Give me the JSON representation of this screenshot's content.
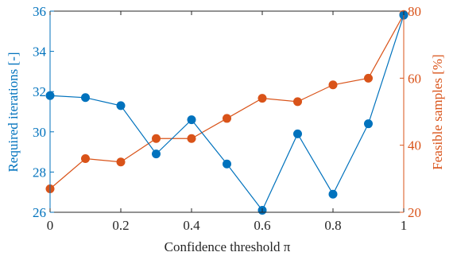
{
  "chart_data": {
    "type": "line",
    "title": "",
    "xlabel": "Confidence threshold π",
    "x": [
      0,
      0.1,
      0.2,
      0.3,
      0.4,
      0.5,
      0.6,
      0.7,
      0.8,
      0.9,
      1
    ],
    "xlim": [
      0,
      1
    ],
    "xticks": [
      0,
      0.2,
      0.4,
      0.6,
      0.8,
      1
    ],
    "xtick_labels": [
      "0",
      "0.2",
      "0.4",
      "0.6",
      "0.8",
      "1"
    ],
    "grid": false,
    "legend": "none",
    "axes": {
      "left": {
        "label": "Required iterations [-]",
        "ylim": [
          26,
          36
        ],
        "ticks": [
          26,
          28,
          30,
          32,
          34,
          36
        ],
        "tick_labels": [
          "26",
          "28",
          "30",
          "32",
          "34",
          "36"
        ],
        "color": "#0072BD"
      },
      "right": {
        "label": "Feasible samples [%]",
        "ylim": [
          20,
          80
        ],
        "ticks": [
          20,
          40,
          60,
          80
        ],
        "tick_labels": [
          "20",
          "40",
          "60",
          "80"
        ],
        "color": "#D95319"
      }
    },
    "series": [
      {
        "axis": "left",
        "color": "#0072BD",
        "values": [
          31.8,
          31.7,
          31.3,
          28.9,
          30.6,
          28.4,
          26.1,
          29.9,
          26.9,
          30.4,
          35.8
        ]
      },
      {
        "axis": "right",
        "color": "#D95319",
        "values": [
          27,
          36,
          35,
          42,
          42,
          48,
          54,
          53,
          58,
          60,
          79
        ]
      }
    ]
  }
}
